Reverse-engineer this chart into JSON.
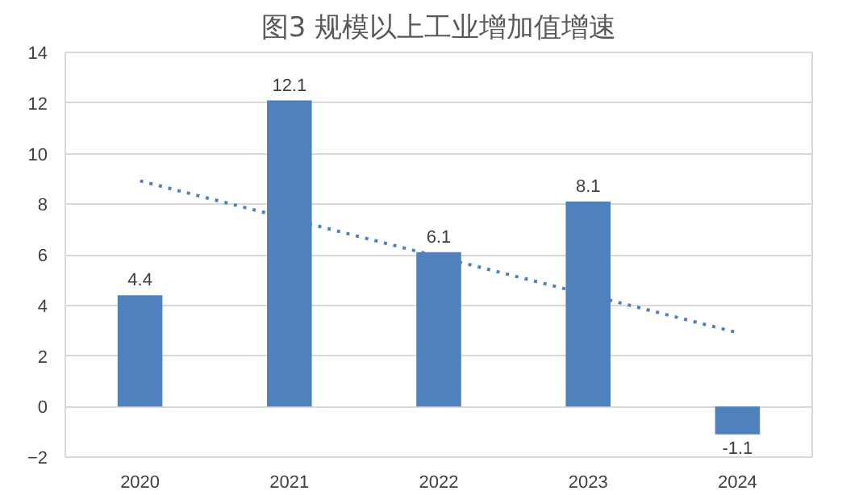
{
  "chart_data": {
    "type": "bar",
    "title": "图3 规模以上工业增加值增速",
    "categories": [
      "2020",
      "2021",
      "2022",
      "2023",
      "2024"
    ],
    "series": [
      {
        "color": "#4f81bd",
        "values": [
          4.4,
          12.1,
          6.1,
          8.1,
          -1.1
        ],
        "value_labels": [
          "4.4",
          "12.1",
          "6.1",
          "8.1",
          "-1.1"
        ]
      },
      {
        "type": "line",
        "color": "#4f81bd",
        "line_style": "dotted",
        "values": [
          8.92,
          7.42,
          5.92,
          4.42,
          2.92
        ]
      }
    ],
    "ylim": [
      -2,
      14
    ],
    "yticks": [
      -2,
      0,
      2,
      4,
      6,
      8,
      10,
      12,
      14
    ],
    "grid": "y"
  }
}
